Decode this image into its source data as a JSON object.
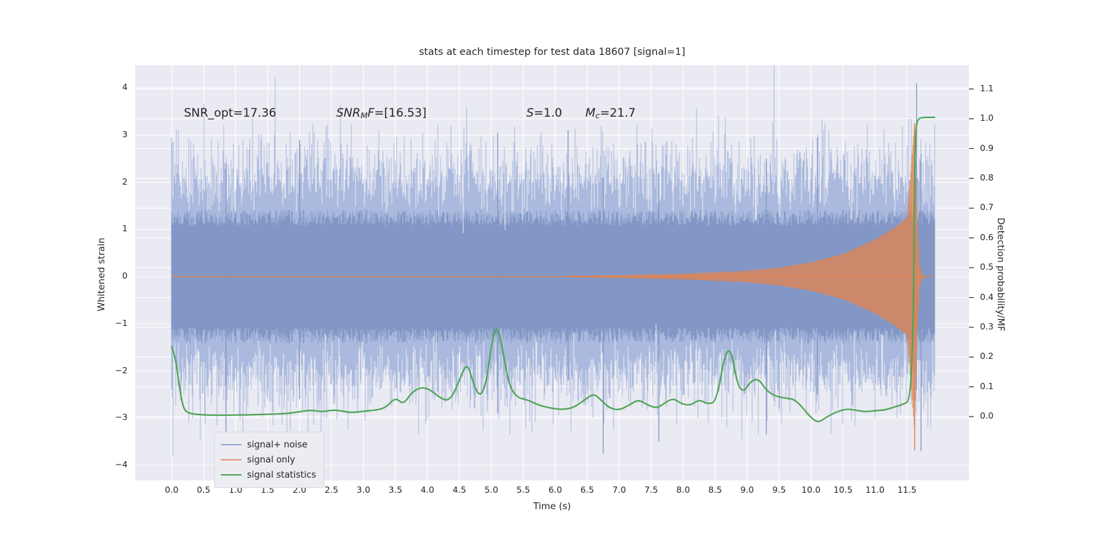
{
  "figure": {
    "title": "stats at each timestep for test data 18607 [signal=1]"
  },
  "axes": {
    "x": {
      "label": "Time (s)",
      "tick_values": [
        0,
        0.5,
        1,
        1.5,
        2,
        2.5,
        3,
        3.5,
        4,
        4.5,
        5,
        5.5,
        6,
        6.5,
        7,
        7.5,
        8,
        8.5,
        9,
        9.5,
        10,
        10.5,
        11,
        11.5
      ],
      "tick_labels": [
        "0.0",
        "0.5",
        "1.0",
        "1.5",
        "2.0",
        "2.5",
        "3.0",
        "3.5",
        "4.0",
        "4.5",
        "5.0",
        "5.5",
        "6.0",
        "6.5",
        "7.0",
        "7.5",
        "8.0",
        "8.5",
        "9.0",
        "9.5",
        "10.0",
        "10.5",
        "11.0",
        "11.5"
      ]
    },
    "y_left": {
      "label": "Whitened strain",
      "tick_values": [
        4,
        3,
        2,
        1,
        0,
        -1,
        -2,
        -3,
        -4
      ],
      "tick_labels": [
        "4",
        "3",
        "2",
        "1",
        "0",
        "−1",
        "−2",
        "−3",
        "−4"
      ]
    },
    "y_right": {
      "label": "Detection probability/MF",
      "tick_values": [
        1.1,
        1.0,
        0.9,
        0.8,
        0.7,
        0.6,
        0.5,
        0.4,
        0.3,
        0.2,
        0.1,
        0.0
      ],
      "tick_labels": [
        "1.1",
        "1.0",
        "0.9",
        "0.8",
        "0.7",
        "0.6",
        "0.5",
        "0.4",
        "0.3",
        "0.2",
        "0.1",
        "0.0"
      ]
    }
  },
  "annotations": [
    {
      "segments": [
        {
          "t": "SNR_opt=17.36",
          "i": 0,
          "s": 0
        }
      ]
    },
    {
      "segments": [
        {
          "t": "SNR",
          "i": 1,
          "s": 0
        },
        {
          "t": "M",
          "i": 1,
          "s": 1
        },
        {
          "t": "F",
          "i": 1,
          "s": 0
        },
        {
          "t": "=[16.53]",
          "i": 0,
          "s": 0
        }
      ]
    },
    {
      "segments": [
        {
          "t": "S",
          "i": 1,
          "s": 0
        },
        {
          "t": "=1.0",
          "i": 0,
          "s": 0
        }
      ]
    },
    {
      "segments": [
        {
          "t": "M",
          "i": 1,
          "s": 0
        },
        {
          "t": "c",
          "i": 1,
          "s": 1
        },
        {
          "t": "=21.7",
          "i": 0,
          "s": 0
        }
      ]
    }
  ],
  "legend": {
    "items": [
      {
        "label": "signal+ noise",
        "color": "#96abd4"
      },
      {
        "label": "signal only",
        "color": "#e29878"
      },
      {
        "label": "signal statistics",
        "color": "#4fa456"
      }
    ]
  },
  "chart_data": {
    "type": "line",
    "title": "stats at each timestep for test data 18607 [signal=1]",
    "xlabel": "Time (s)",
    "ylabel_left": "Whitened strain",
    "ylabel_right": "Detection probability/MF",
    "xlim": [
      -0.57,
      12.47
    ],
    "ylim_left": [
      -4.32,
      4.48
    ],
    "ylim_right": [
      -0.214,
      1.18
    ],
    "grid": true,
    "background": "#eaeaf2",
    "gridline_color": "#ffffff",
    "series": [
      {
        "name": "signal+ noise",
        "axis": "left",
        "render": "noise_band",
        "color_fringe": "#a3b4da",
        "color_core": "#8297c6",
        "t_range": [
          0,
          11.93
        ],
        "std": 1.0,
        "core_halfwidth": 1.3,
        "seed": 18607,
        "samples_per_column": 40,
        "extremes": [
          {
            "t": 0.85,
            "lo": -3.3,
            "hi": 2.4
          },
          {
            "t": 2.0,
            "lo": -2.6,
            "hi": 2.9
          },
          {
            "t": 5.1,
            "lo": -2.9,
            "hi": 3.05
          },
          {
            "t": 6.2,
            "lo": -2.2,
            "hi": 3.1
          },
          {
            "t": 6.75,
            "lo": -3.75,
            "hi": 2.1
          },
          {
            "t": 7.62,
            "lo": -3.5,
            "hi": 2.2
          },
          {
            "t": 9.3,
            "lo": -3.35,
            "hi": 2.5
          },
          {
            "t": 10.1,
            "lo": -2.5,
            "hi": 2.95
          },
          {
            "t": 11.65,
            "lo": -2.4,
            "hi": 4.1
          },
          {
            "t": 11.72,
            "lo": -3.7,
            "hi": 2.6
          }
        ]
      },
      {
        "name": "signal only",
        "axis": "left",
        "render": "chirp_envelope",
        "color": "#dd8452",
        "baseline": 0,
        "t_range": [
          0,
          11.93
        ],
        "merger_time": 11.62,
        "envelope": [
          [
            0,
            0.012
          ],
          [
            6,
            0.012
          ],
          [
            7,
            0.03
          ],
          [
            8,
            0.06
          ],
          [
            9,
            0.12
          ],
          [
            9.5,
            0.19
          ],
          [
            10,
            0.3
          ],
          [
            10.5,
            0.48
          ],
          [
            11,
            0.78
          ],
          [
            11.3,
            1.03
          ],
          [
            11.5,
            1.24
          ],
          [
            11.62,
            3.3
          ],
          [
            11.66,
            1.2
          ],
          [
            11.7,
            0.25
          ],
          [
            11.74,
            0.05
          ],
          [
            11.78,
            0.012
          ],
          [
            11.93,
            0.01
          ]
        ]
      },
      {
        "name": "signal statistics",
        "axis": "right",
        "render": "line",
        "color": "#4fa456",
        "points": [
          [
            0,
            0.235
          ],
          [
            0.06,
            0.2
          ],
          [
            0.12,
            0.1
          ],
          [
            0.18,
            0.03
          ],
          [
            0.25,
            0.012
          ],
          [
            0.4,
            0.007
          ],
          [
            0.6,
            0.005
          ],
          [
            0.9,
            0.005
          ],
          [
            1.2,
            0.006
          ],
          [
            1.5,
            0.008
          ],
          [
            1.8,
            0.01
          ],
          [
            2.05,
            0.018
          ],
          [
            2.2,
            0.022
          ],
          [
            2.35,
            0.016
          ],
          [
            2.5,
            0.022
          ],
          [
            2.65,
            0.02
          ],
          [
            2.8,
            0.013
          ],
          [
            3.0,
            0.018
          ],
          [
            3.2,
            0.022
          ],
          [
            3.35,
            0.03
          ],
          [
            3.5,
            0.065
          ],
          [
            3.62,
            0.04
          ],
          [
            3.75,
            0.08
          ],
          [
            3.9,
            0.1
          ],
          [
            4.05,
            0.09
          ],
          [
            4.2,
            0.062
          ],
          [
            4.35,
            0.052
          ],
          [
            4.5,
            0.12
          ],
          [
            4.62,
            0.185
          ],
          [
            4.72,
            0.11
          ],
          [
            4.82,
            0.065
          ],
          [
            4.92,
            0.11
          ],
          [
            5.02,
            0.27
          ],
          [
            5.1,
            0.305
          ],
          [
            5.18,
            0.22
          ],
          [
            5.28,
            0.1
          ],
          [
            5.42,
            0.062
          ],
          [
            5.55,
            0.058
          ],
          [
            5.7,
            0.042
          ],
          [
            5.85,
            0.032
          ],
          [
            6.0,
            0.026
          ],
          [
            6.15,
            0.024
          ],
          [
            6.3,
            0.032
          ],
          [
            6.45,
            0.055
          ],
          [
            6.6,
            0.078
          ],
          [
            6.72,
            0.055
          ],
          [
            6.85,
            0.028
          ],
          [
            7.0,
            0.022
          ],
          [
            7.15,
            0.038
          ],
          [
            7.3,
            0.058
          ],
          [
            7.45,
            0.038
          ],
          [
            7.6,
            0.028
          ],
          [
            7.72,
            0.048
          ],
          [
            7.85,
            0.062
          ],
          [
            7.98,
            0.042
          ],
          [
            8.12,
            0.038
          ],
          [
            8.25,
            0.058
          ],
          [
            8.38,
            0.042
          ],
          [
            8.52,
            0.05
          ],
          [
            8.65,
            0.21
          ],
          [
            8.75,
            0.228
          ],
          [
            8.85,
            0.105
          ],
          [
            8.95,
            0.082
          ],
          [
            9.05,
            0.118
          ],
          [
            9.18,
            0.128
          ],
          [
            9.3,
            0.088
          ],
          [
            9.45,
            0.068
          ],
          [
            9.6,
            0.062
          ],
          [
            9.75,
            0.058
          ],
          [
            9.9,
            0.022
          ],
          [
            10.02,
            -0.008
          ],
          [
            10.12,
            -0.02
          ],
          [
            10.25,
            0.0
          ],
          [
            10.4,
            0.016
          ],
          [
            10.55,
            0.026
          ],
          [
            10.7,
            0.022
          ],
          [
            10.85,
            0.016
          ],
          [
            11.0,
            0.02
          ],
          [
            11.15,
            0.022
          ],
          [
            11.3,
            0.032
          ],
          [
            11.45,
            0.042
          ],
          [
            11.55,
            0.055
          ],
          [
            11.6,
            0.3
          ],
          [
            11.62,
            0.8
          ],
          [
            11.64,
            0.97
          ],
          [
            11.67,
            1.0
          ],
          [
            11.75,
            1.005
          ],
          [
            11.85,
            1.005
          ],
          [
            11.93,
            1.005
          ]
        ]
      }
    ],
    "annotations_text": [
      "SNR_opt=17.36",
      "SNR_MF=[16.53]",
      "S=1.0",
      "M_c=21.7"
    ],
    "legend_position": "lower left"
  }
}
